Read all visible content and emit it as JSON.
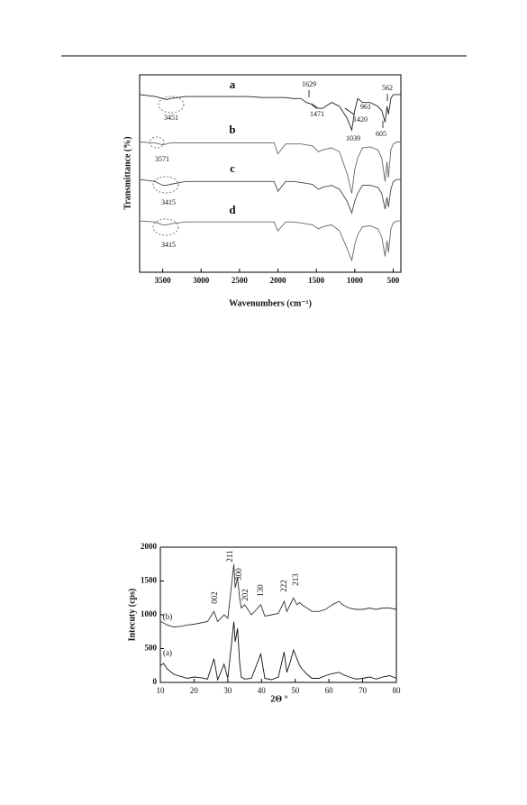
{
  "chart_data": [
    {
      "type": "line",
      "xlabel": "Wavenumbers (cm⁻¹)",
      "ylabel": "Transmittance (%)",
      "x": [
        3800,
        3600,
        3500,
        3451,
        3400,
        3200,
        3000,
        2800,
        2600,
        2400,
        2200,
        2100,
        2050,
        2000,
        1900,
        1800,
        1700,
        1629,
        1550,
        1471,
        1420,
        1300,
        1200,
        1100,
        1039,
        1000,
        961,
        900,
        800,
        700,
        650,
        605,
        580,
        562,
        530,
        500,
        450,
        400
      ],
      "series": [
        {
          "name": "a",
          "color": "#222222",
          "values": [
            90,
            89,
            88,
            87.5,
            88,
            89,
            89,
            89,
            89,
            89,
            88.5,
            88.5,
            88.5,
            88.5,
            88.5,
            88,
            88,
            86,
            85,
            83,
            83,
            86,
            84,
            78,
            72,
            82,
            88,
            86,
            86,
            84,
            82,
            76,
            84,
            80,
            88,
            90,
            90,
            90
          ]
        },
        {
          "name": "b",
          "color": "#666666",
          "values": [
            66,
            65.5,
            64.5,
            65,
            65.5,
            65.5,
            65.5,
            65.5,
            65.5,
            65.5,
            65.5,
            65.5,
            65.5,
            60,
            65,
            65,
            65,
            64.5,
            64,
            61,
            62,
            63,
            61,
            50,
            40,
            52,
            58,
            63,
            63.5,
            62,
            58,
            46,
            56,
            48,
            62,
            65,
            66,
            66
          ]
        },
        {
          "name": "c",
          "color": "#444444",
          "values": [
            47,
            46,
            44,
            44,
            44.5,
            46,
            46,
            46,
            46,
            46,
            46,
            46,
            46,
            41,
            46,
            46,
            45.5,
            45,
            44.5,
            42,
            43,
            44,
            42,
            36,
            30,
            36,
            40,
            44,
            44,
            43,
            40,
            32,
            38,
            33,
            42,
            46,
            47,
            47
          ]
        },
        {
          "name": "d",
          "color": "#666666",
          "values": [
            26,
            25.5,
            24,
            24,
            24.5,
            25.5,
            25.5,
            25.5,
            25.5,
            25.5,
            25.5,
            25.5,
            25.5,
            21,
            25.5,
            25.5,
            25,
            24.5,
            24,
            22,
            23,
            24,
            21,
            12,
            6,
            14,
            19,
            23,
            23.5,
            22,
            18,
            8,
            16,
            10,
            22,
            25,
            26,
            26
          ]
        }
      ],
      "annotations": [
        "3451",
        "1629",
        "1471",
        "1420",
        "961",
        "562",
        "1039",
        "605",
        "3571",
        "3415",
        "3415"
      ],
      "xlim": [
        3800,
        400
      ],
      "xticks": [
        3500,
        3000,
        2500,
        2000,
        1500,
        1000,
        500
      ],
      "ylim": [
        0,
        100
      ]
    },
    {
      "type": "line",
      "xlabel": "2Θ °",
      "ylabel": "Intecuty (cps)",
      "x": [
        10,
        11,
        12,
        14,
        16,
        18,
        20,
        22,
        24,
        25.9,
        27,
        28.9,
        30,
        31.8,
        32.2,
        32.9,
        33.5,
        34,
        35,
        37,
        39.8,
        41,
        43,
        45,
        46.7,
        47.5,
        48.5,
        49.5,
        50.5,
        51.3,
        52,
        53.5,
        55,
        57,
        59,
        61,
        63,
        64,
        66,
        68,
        70,
        72,
        74,
        76,
        78,
        80
      ],
      "series": [
        {
          "name": "(a)",
          "color": "#111111",
          "values": [
            250,
            280,
            200,
            120,
            90,
            60,
            80,
            70,
            50,
            350,
            40,
            270,
            60,
            900,
            600,
            800,
            300,
            80,
            50,
            60,
            420,
            60,
            40,
            80,
            450,
            150,
            300,
            480,
            350,
            250,
            200,
            120,
            60,
            60,
            100,
            130,
            150,
            120,
            80,
            50,
            60,
            80,
            50,
            80,
            100,
            60
          ]
        },
        {
          "name": "(b)",
          "color": "#333333",
          "values": [
            900,
            880,
            850,
            820,
            830,
            850,
            860,
            880,
            900,
            1050,
            900,
            1000,
            950,
            1750,
            1400,
            1550,
            1250,
            1100,
            1150,
            1000,
            1150,
            980,
            1000,
            1020,
            1200,
            1050,
            1150,
            1250,
            1150,
            1180,
            1150,
            1100,
            1050,
            1050,
            1080,
            1150,
            1200,
            1150,
            1100,
            1080,
            1080,
            1100,
            1080,
            1100,
            1100,
            1080
          ]
        }
      ],
      "annotations": [
        "002",
        "211",
        "300",
        "202",
        "130",
        "222",
        "213"
      ],
      "xlim": [
        10,
        80
      ],
      "xticks": [
        10,
        20,
        30,
        40,
        50,
        60,
        70,
        80
      ],
      "ylim": [
        0,
        2000
      ],
      "yticks": [
        0,
        500,
        1000,
        1500,
        2000
      ]
    }
  ]
}
